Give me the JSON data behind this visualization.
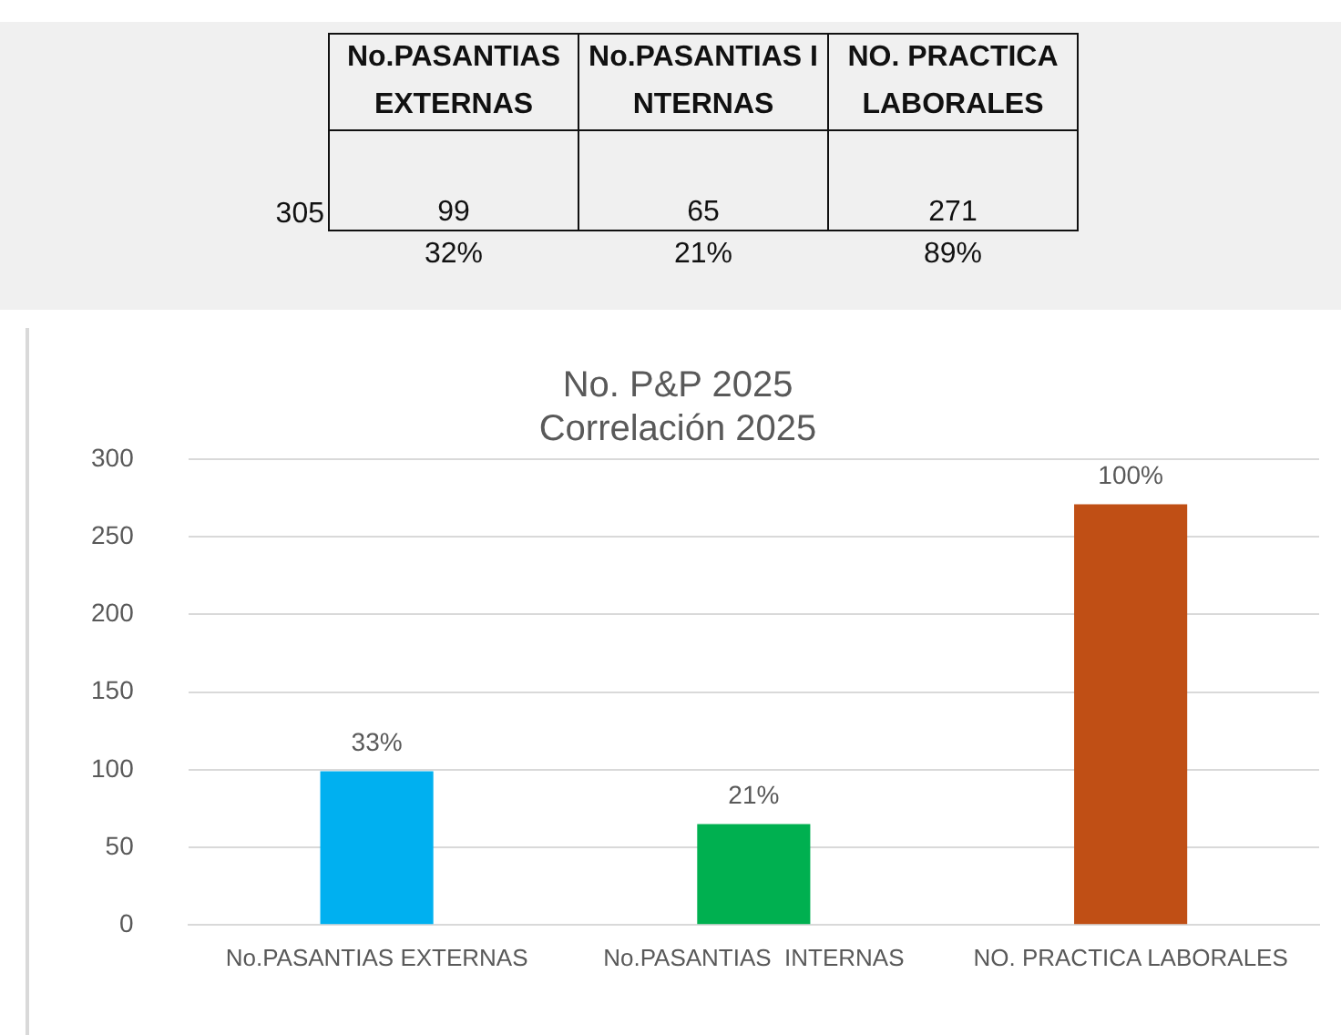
{
  "chart_data": {
    "type": "bar",
    "title": "No. P&P 2025",
    "subtitle": "Correlación 2025",
    "categories": [
      "No.PASANTIAS EXTERNAS",
      "No.PASANTIAS  INTERNAS",
      "NO. PRACTICA LABORALES"
    ],
    "values": [
      99,
      65,
      271
    ],
    "colors": [
      "#00b0f0",
      "#00b050",
      "#c04f15"
    ],
    "ylim": [
      0,
      300
    ],
    "yticks": [
      0,
      50,
      100,
      150,
      200,
      250,
      300
    ],
    "grid": "y",
    "legend": false,
    "annotations": [
      "No.PASANTIAS EXTERNAS",
      "No.PASANTIAS  INTERNAS",
      "NO. PRACTICA LABORALES",
      "305",
      "99",
      "65",
      "271",
      "32%",
      "21%",
      "89%",
      {
        "text": "33%",
        "x": "No.PASANTIAS EXTERNAS",
        "y": 99
      },
      {
        "text": "21%",
        "x": "No.PASANTIAS  INTERNAS",
        "y": 65
      },
      {
        "text": "100%",
        "x": "NO. PRACTICA LABORALES",
        "y": 271
      }
    ]
  }
}
